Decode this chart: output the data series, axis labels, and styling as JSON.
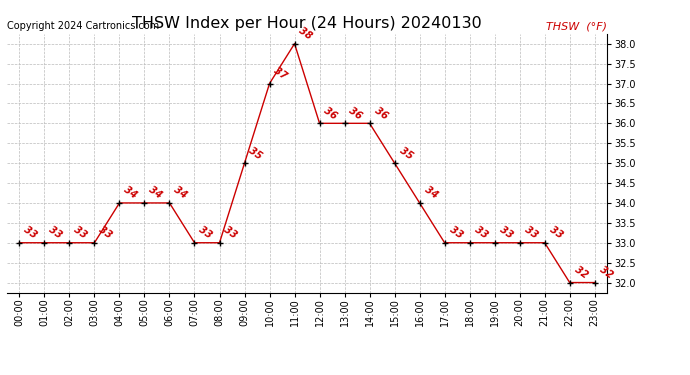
{
  "title": "THSW Index per Hour (24 Hours) 20240130",
  "copyright": "Copyright 2024 Cartronics.com",
  "legend_label": "THSW  (°F)",
  "hours": [
    0,
    1,
    2,
    3,
    4,
    5,
    6,
    7,
    8,
    9,
    10,
    11,
    12,
    13,
    14,
    15,
    16,
    17,
    18,
    19,
    20,
    21,
    22,
    23
  ],
  "values": [
    33,
    33,
    33,
    33,
    34,
    34,
    34,
    33,
    33,
    35,
    37,
    38,
    36,
    36,
    36,
    35,
    34,
    33,
    33,
    33,
    33,
    33,
    32,
    32
  ],
  "ylim": [
    31.75,
    38.25
  ],
  "yticks": [
    32.0,
    32.5,
    33.0,
    33.5,
    34.0,
    34.5,
    35.0,
    35.5,
    36.0,
    36.5,
    37.0,
    37.5,
    38.0
  ],
  "line_color": "#cc0000",
  "marker_color": "#000000",
  "label_color": "#cc0000",
  "title_color": "#000000",
  "copyright_color": "#000000",
  "legend_color": "#cc0000",
  "background_color": "#ffffff",
  "grid_color": "#bbbbbb",
  "title_fontsize": 11.5,
  "label_fontsize": 7,
  "axis_fontsize": 7,
  "legend_fontsize": 8,
  "copyright_fontsize": 7
}
